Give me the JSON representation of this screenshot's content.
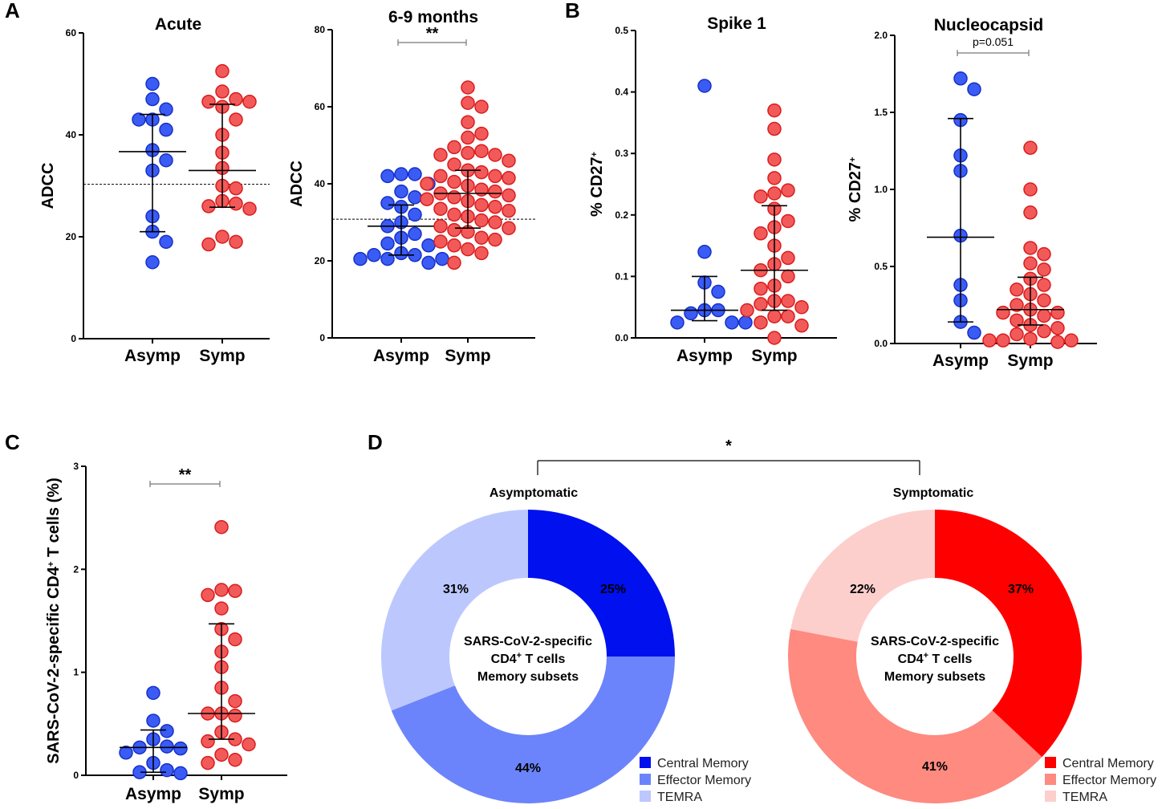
{
  "panel_labels": [
    "A",
    "B",
    "C",
    "D"
  ],
  "colors": {
    "asymp": "#3a5cf5",
    "asymp_edge": "#1630c8",
    "symp": "#f25a5a",
    "symp_edge": "#d91c1c",
    "asymp_cm": "#0010ee",
    "asymp_em": "#6b84fb",
    "asymp_temra": "#bcc8fd",
    "symp_cm": "#ff0000",
    "symp_em": "#fe8a80",
    "symp_temra": "#fdcfcc"
  },
  "chart_data": [
    {
      "id": "acute",
      "type": "scatter",
      "panel": "A",
      "title": "Acute",
      "xlabel": "",
      "ylabel": "ADCC",
      "categories": [
        "Asymp",
        "Symp"
      ],
      "ylim": [
        0,
        60
      ],
      "yticks": [
        "0",
        "20",
        "40",
        "60"
      ],
      "reference_line": 30.3,
      "series": [
        {
          "name": "Asymp",
          "values": [
            50,
            47,
            45,
            43,
            43,
            41,
            37,
            35,
            33,
            24,
            21,
            19,
            15
          ],
          "median": 36.7,
          "q1": 21,
          "q3": 44
        },
        {
          "name": "Symp",
          "values": [
            52.5,
            48.5,
            47,
            46.5,
            46.5,
            45.5,
            43,
            40,
            36.5,
            33.5,
            30,
            29.5,
            27,
            26.5,
            26,
            25.5,
            20,
            19,
            18.5
          ],
          "median": 33,
          "q1": 25.8,
          "q3": 46
        }
      ],
      "significance": ""
    },
    {
      "id": "months",
      "type": "scatter",
      "panel": "A",
      "title": "6-9 months",
      "xlabel": "",
      "ylabel": "ADCC",
      "categories": [
        "Asymp",
        "Symp"
      ],
      "ylim": [
        0,
        80
      ],
      "yticks": [
        "0",
        "20",
        "40",
        "60",
        "80"
      ],
      "reference_line": 30.8,
      "series": [
        {
          "name": "Asymp",
          "values": [
            42.5,
            42.5,
            42,
            40,
            38,
            36.5,
            35,
            34,
            32,
            30,
            29,
            27,
            26,
            24,
            22,
            21.5,
            21.5,
            20.5,
            20.5,
            20.5,
            19.5,
            24.5
          ],
          "median": 29,
          "q1": 21.5,
          "q3": 34.5
        },
        {
          "name": "Symp",
          "values": [
            65,
            61,
            60,
            56,
            53,
            52,
            49.5,
            48.5,
            48,
            47.5,
            47.5,
            46,
            45,
            43.5,
            43,
            42,
            42,
            41.5,
            40.5,
            40,
            39.5,
            38.5,
            38,
            37.5,
            37,
            36.5,
            36,
            35.5,
            34.5,
            34,
            33.5,
            33,
            32,
            31.5,
            30.5,
            30,
            29,
            28.5,
            28,
            27.5,
            26,
            25.5,
            25,
            24,
            23,
            22,
            19.5
          ],
          "median": 37.5,
          "q1": 28.5,
          "q3": 43.5
        }
      ],
      "significance": "**"
    },
    {
      "id": "spike1",
      "type": "scatter",
      "panel": "B",
      "title": "Spike 1",
      "xlabel": "",
      "ylabel": "% CD27+",
      "categories": [
        "Asymp",
        "Symp"
      ],
      "ylim": [
        0,
        0.5
      ],
      "yticks": [
        "0.0",
        "0.1",
        "0.2",
        "0.3",
        "0.4",
        "0.5"
      ],
      "series": [
        {
          "name": "Asymp",
          "values": [
            0.41,
            0.14,
            0.09,
            0.075,
            0.045,
            0.045,
            0.04,
            0.025,
            0.025,
            0.025
          ],
          "median": 0.045,
          "q1": 0.028,
          "q3": 0.1
        },
        {
          "name": "Symp",
          "values": [
            0.37,
            0.34,
            0.29,
            0.26,
            0.24,
            0.235,
            0.23,
            0.21,
            0.19,
            0.18,
            0.17,
            0.15,
            0.13,
            0.12,
            0.11,
            0.1,
            0.085,
            0.08,
            0.06,
            0.06,
            0.055,
            0.05,
            0.045,
            0.035,
            0.035,
            0.025,
            0.02,
            0.0
          ],
          "median": 0.11,
          "q1": 0.045,
          "q3": 0.215
        }
      ],
      "significance": ""
    },
    {
      "id": "nucleo",
      "type": "scatter",
      "panel": "B",
      "title": "Nucleocapsid",
      "xlabel": "",
      "ylabel": "% CD27+",
      "categories": [
        "Asymp",
        "Symp"
      ],
      "ylim": [
        0,
        2.0
      ],
      "yticks": [
        "0.0",
        "0.5",
        "1.0",
        "1.5",
        "2.0"
      ],
      "series": [
        {
          "name": "Asymp",
          "values": [
            1.72,
            1.65,
            1.45,
            1.22,
            1.12,
            0.7,
            0.38,
            0.28,
            0.14,
            0.07
          ],
          "median": 0.69,
          "q1": 0.14,
          "q3": 1.46
        },
        {
          "name": "Symp",
          "values": [
            1.27,
            1.0,
            0.85,
            0.62,
            0.58,
            0.52,
            0.48,
            0.42,
            0.38,
            0.35,
            0.32,
            0.28,
            0.25,
            0.22,
            0.2,
            0.2,
            0.18,
            0.15,
            0.12,
            0.1,
            0.08,
            0.06,
            0.03,
            0.02,
            0.02,
            0.02,
            0.01
          ],
          "median": 0.22,
          "q1": 0.12,
          "q3": 0.43
        }
      ],
      "significance": "p=0.051"
    },
    {
      "id": "cd4",
      "type": "scatter",
      "panel": "C",
      "title": "",
      "xlabel": "",
      "ylabel": "SARS-CoV-2-specific CD4+ T cells (%)",
      "categories": [
        "Asymp",
        "Symp"
      ],
      "ylim": [
        0,
        3
      ],
      "yticks": [
        "0",
        "1",
        "2",
        "3"
      ],
      "series": [
        {
          "name": "Asymp",
          "values": [
            0.8,
            0.53,
            0.43,
            0.35,
            0.28,
            0.27,
            0.26,
            0.22,
            0.12,
            0.05,
            0.03,
            0.02
          ],
          "median": 0.27,
          "q1": 0.03,
          "q3": 0.44
        },
        {
          "name": "Symp",
          "values": [
            2.41,
            1.8,
            1.79,
            1.75,
            1.62,
            1.42,
            1.32,
            1.2,
            1.05,
            0.85,
            0.72,
            0.6,
            0.58,
            0.6,
            0.42,
            0.35,
            0.33,
            0.3,
            0.2,
            0.15,
            0.12
          ],
          "median": 0.6,
          "q1": 0.35,
          "q3": 1.47
        }
      ],
      "significance": "**"
    },
    {
      "id": "asymp_donut",
      "type": "pie",
      "panel": "D",
      "title": "Asymptomatic",
      "center_lines": [
        "SARS-CoV-2-specific",
        "CD4+ T cells",
        "Memory subsets"
      ],
      "labels": [
        "Central Memory",
        "Effector Memory",
        "TEMRA"
      ],
      "values": [
        25,
        44,
        31
      ],
      "value_labels": [
        "25%",
        "44%",
        "31%"
      ]
    },
    {
      "id": "symp_donut",
      "type": "pie",
      "panel": "D",
      "title": "Symptomatic",
      "center_lines": [
        "SARS-CoV-2-specific",
        "CD4+ T cells",
        "Memory subsets"
      ],
      "labels": [
        "Central Memory",
        "Effector Memory",
        "TEMRA"
      ],
      "values": [
        37,
        41,
        22
      ],
      "value_labels": [
        "37%",
        "41%",
        "22%"
      ]
    }
  ],
  "panel_d_significance": "*"
}
